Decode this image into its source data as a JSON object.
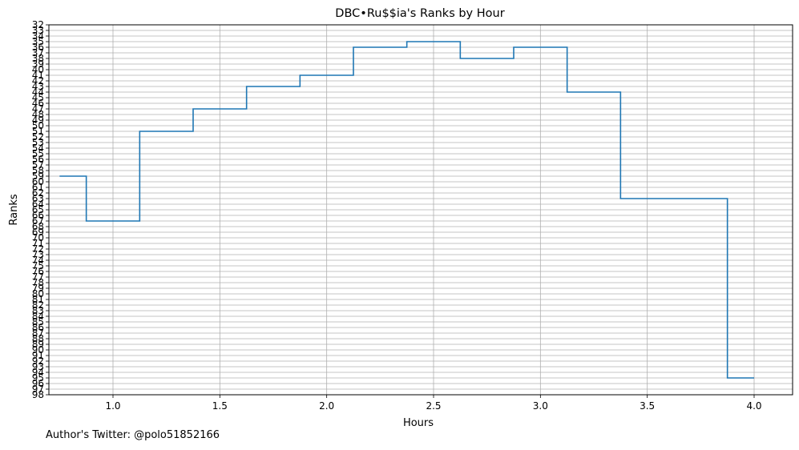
{
  "footer": {
    "author_note": "Author's Twitter: @polo51852166"
  },
  "chart_data": {
    "type": "line",
    "step": "mid",
    "title": "DBC•Ru$$ia's Ranks by Hour",
    "xlabel": "Hours",
    "ylabel": "Ranks",
    "xlim": [
      0.7,
      4.18
    ],
    "ylim": [
      98,
      32
    ],
    "y_inverted": true,
    "x_ticks": [
      1.0,
      1.5,
      2.0,
      2.5,
      3.0,
      3.5,
      4.0
    ],
    "x_tick_labels": [
      "1.0",
      "1.5",
      "2.0",
      "2.5",
      "3.0",
      "3.5",
      "4.0"
    ],
    "y_ticks": [
      32,
      33,
      34,
      35,
      36,
      37,
      38,
      39,
      40,
      41,
      42,
      43,
      44,
      45,
      46,
      47,
      48,
      49,
      50,
      51,
      52,
      53,
      54,
      55,
      56,
      57,
      58,
      59,
      60,
      61,
      62,
      63,
      64,
      65,
      66,
      67,
      68,
      69,
      70,
      71,
      72,
      73,
      74,
      75,
      76,
      77,
      78,
      79,
      80,
      81,
      82,
      83,
      84,
      85,
      86,
      87,
      88,
      89,
      90,
      91,
      92,
      93,
      94,
      95,
      96,
      97,
      98
    ],
    "y_tick_labels": [
      "32",
      "33",
      "34",
      "35",
      "36",
      "37",
      "38",
      "39",
      "40",
      "41",
      "42",
      "43",
      "44",
      "45",
      "46",
      "47",
      "48",
      "49",
      "50",
      "51",
      "52",
      "53",
      "54",
      "55",
      "56",
      "57",
      "58",
      "59",
      "60",
      "61",
      "62",
      "63",
      "64",
      "65",
      "66",
      "67",
      "68",
      "69",
      "70",
      "71",
      "72",
      "73",
      "74",
      "75",
      "76",
      "77",
      "78",
      "79",
      "80",
      "81",
      "82",
      "83",
      "84",
      "85",
      "86",
      "87",
      "88",
      "89",
      "90",
      "91",
      "92",
      "93",
      "94",
      "95",
      "96",
      "97",
      "98"
    ],
    "grid": true,
    "series": [
      {
        "color": "#1f77b4",
        "x": [
          0.75,
          1.0,
          1.25,
          1.5,
          1.75,
          2.0,
          2.25,
          2.5,
          2.75,
          3.0,
          3.25,
          3.5,
          3.75,
          4.0
        ],
        "y": [
          59,
          67,
          51,
          47,
          43,
          41,
          36,
          35,
          38,
          36,
          44,
          63,
          63,
          95
        ]
      }
    ]
  }
}
